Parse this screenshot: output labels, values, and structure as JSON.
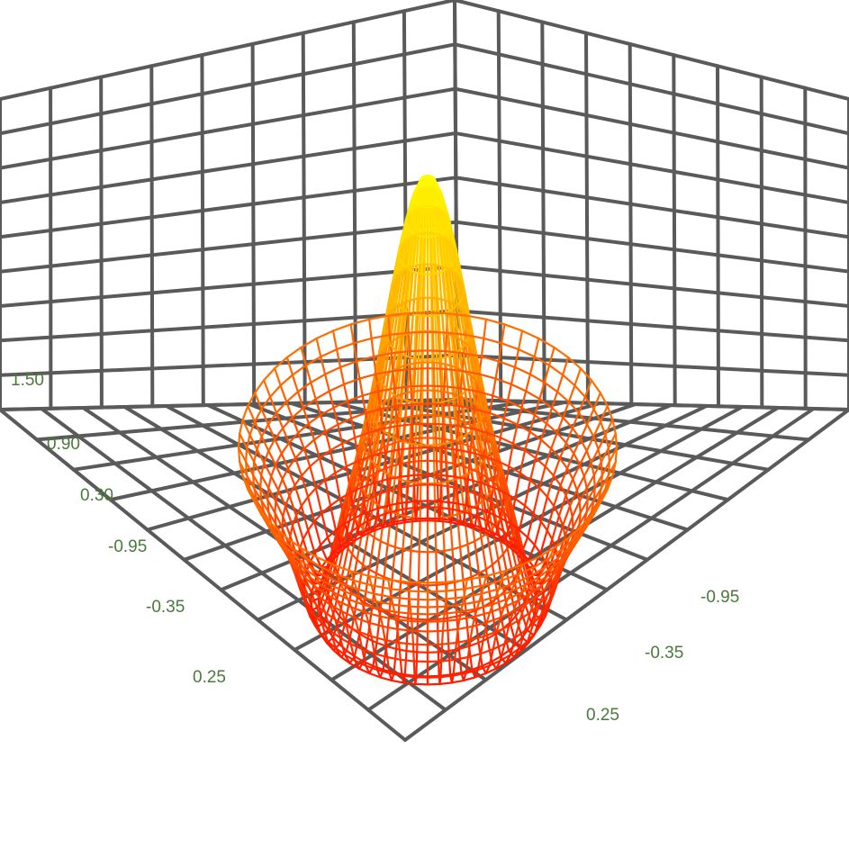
{
  "chart_data": {
    "type": "surface",
    "title": "",
    "surface": {
      "function": "sinc-like radial",
      "peak_value": 1.5,
      "style": "wireframe"
    },
    "z_ticks": [
      "1.50",
      "0.90",
      "0.30"
    ],
    "x_ticks": [
      "-0.95",
      "-0.35",
      "0.25"
    ],
    "y_ticks": [
      "-0.95",
      "-0.35",
      "0.25"
    ],
    "grid": true,
    "colors": {
      "grid": "#5a5a5a",
      "tick_text": "#4a7a3a",
      "surface_low": "#ff1a00",
      "surface_mid": "#ff8c00",
      "surface_high": "#ffff00"
    }
  }
}
